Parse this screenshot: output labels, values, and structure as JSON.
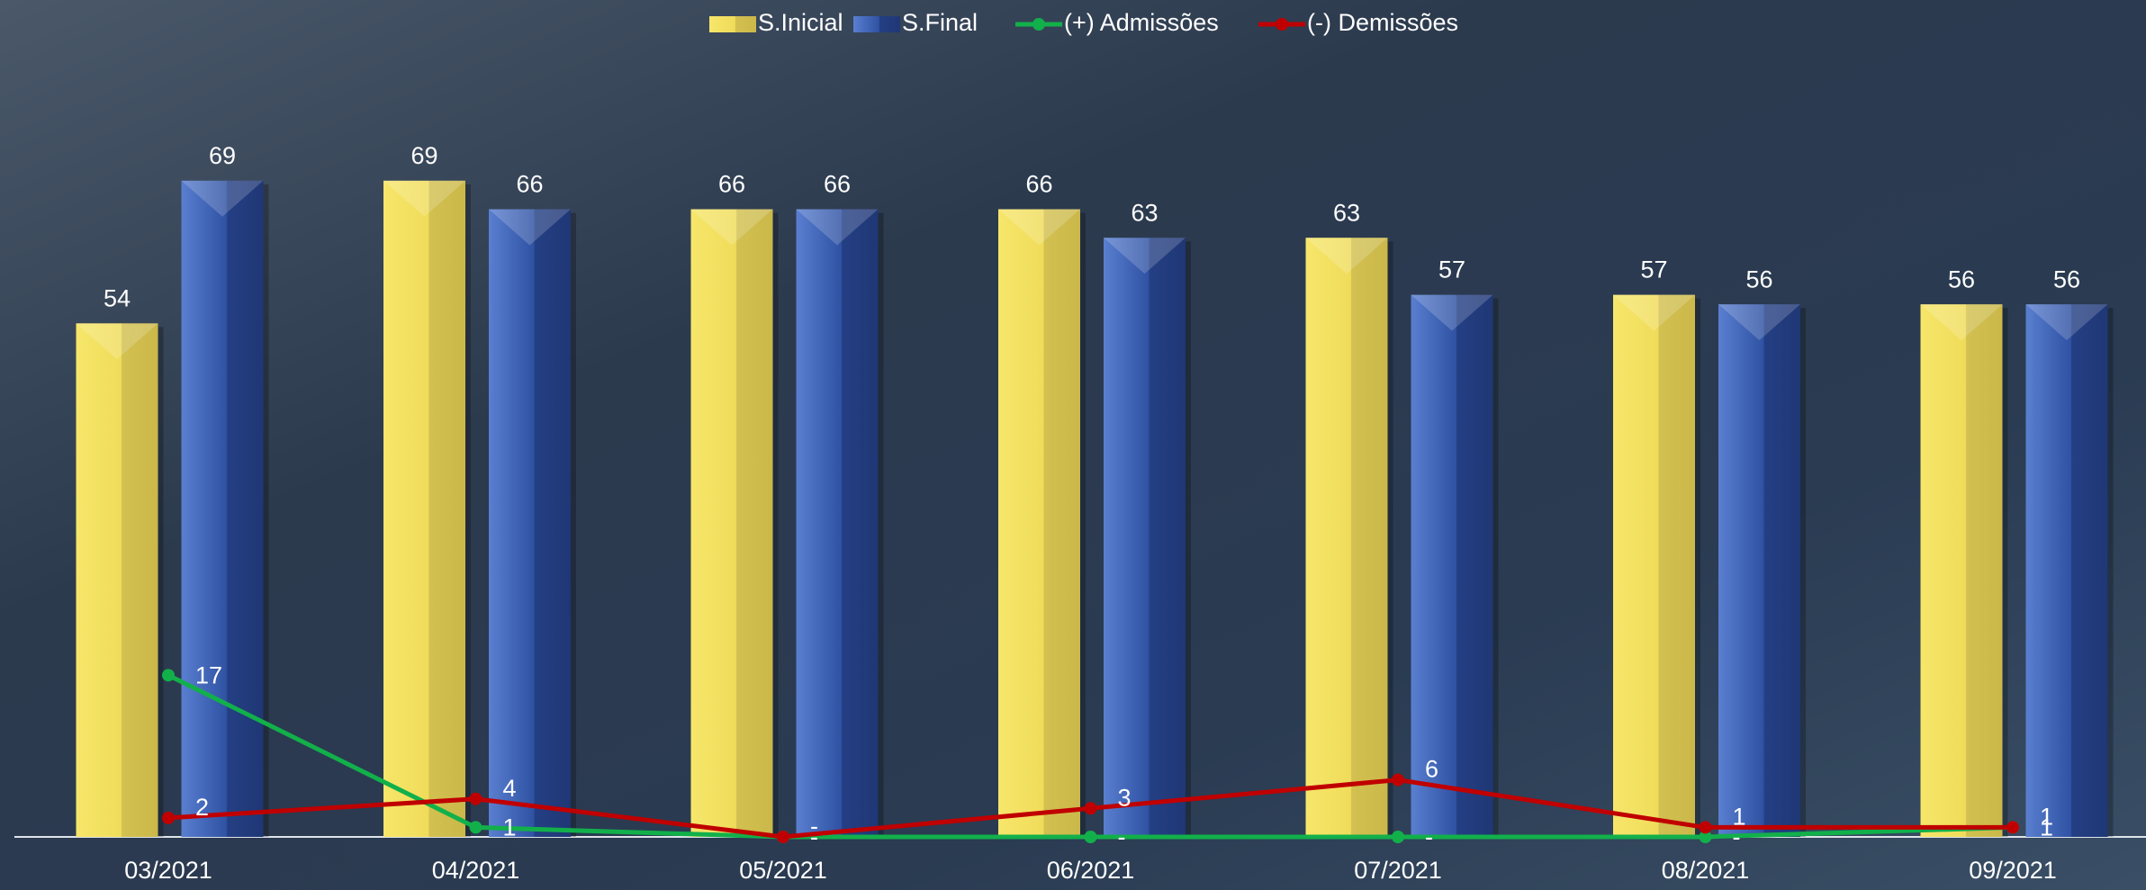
{
  "chart_data": {
    "type": "bar",
    "categories": [
      "03/2021",
      "04/2021",
      "05/2021",
      "06/2021",
      "07/2021",
      "08/2021",
      "09/2021"
    ],
    "series": [
      {
        "name": "S.Inicial",
        "type": "bar",
        "color": "#f0dc5a",
        "values": [
          54,
          69,
          66,
          66,
          63,
          57,
          56
        ]
      },
      {
        "name": "S.Final",
        "type": "bar",
        "color": "#2f52a3",
        "values": [
          69,
          66,
          66,
          63,
          57,
          56,
          56
        ]
      },
      {
        "name": "(+) Admissões",
        "type": "line",
        "color": "#12b04a",
        "values": [
          17,
          1,
          0,
          0,
          0,
          0,
          1
        ],
        "value_labels": [
          "17",
          "1",
          "-",
          "-",
          "-",
          "-",
          "1"
        ]
      },
      {
        "name": "(-) Demissões",
        "type": "line",
        "color": "#c00000",
        "values": [
          2,
          4,
          0,
          3,
          6,
          1,
          1
        ],
        "value_labels": [
          "2",
          "4",
          "-",
          "3",
          "6",
          "1",
          "1"
        ]
      }
    ],
    "ylim": [
      0,
      88
    ],
    "legend": "top"
  }
}
